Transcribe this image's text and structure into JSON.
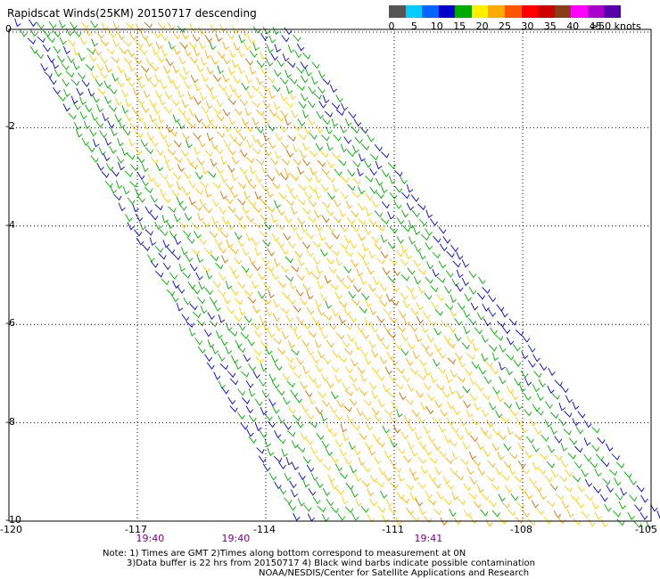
{
  "title": "Rapidscat Winds(25KM) 20150717 descending",
  "legend": {
    "colors": [
      "#555555",
      "#00ccff",
      "#0066ff",
      "#0000cc",
      "#00aa00",
      "#ffee00",
      "#ffaa00",
      "#ff5500",
      "#ff0000",
      "#cc0000",
      "#8b3a1a",
      "#ff00ff",
      "#aa00cc",
      "#5500aa"
    ],
    "labels": [
      "0",
      "5",
      "10",
      "15",
      "20",
      "25",
      "30",
      "35",
      "40",
      "45",
      ">50 knots"
    ],
    "barb_colors": {
      "lt15": "#0000cc",
      "lt20": "#00aa00",
      "lt25": "#ffcc00",
      "lt30": "#ffaa00",
      "ge30": "#cc6600"
    }
  },
  "map": {
    "lon_range": [
      -120,
      -105
    ],
    "lat_range": [
      -10,
      0
    ],
    "x_ticks": [
      "-120",
      "-117",
      "-114",
      "-111",
      "-108",
      "-105"
    ],
    "y_ticks": [
      "0",
      "-2",
      "-4",
      "-6",
      "-8",
      "-10"
    ],
    "grid_lons": [
      -117,
      -114,
      -111,
      -108
    ],
    "grid_lats": [
      -2,
      -4,
      -6,
      -8
    ]
  },
  "swath": {
    "corners": [
      [
        -120,
        0.2
      ],
      [
        -113.5,
        0.2
      ],
      [
        -104.5,
        -10
      ],
      [
        -113.5,
        -10
      ]
    ],
    "speed_knots": {
      "edge": 15,
      "mid": 20,
      "core": 25
    }
  },
  "times": [
    {
      "label": "19:40",
      "lon": -116.7
    },
    {
      "label": "19:40",
      "lon": -114.7
    },
    {
      "label": "19:41",
      "lon": -110.2
    }
  ],
  "notes": [
    "Note: 1) Times are GMT 2)Times along bottom correspond to measurement at 0N",
    "3)Data buffer is 22 hrs from 20150717 4) Black wind barbs indicate possible contamination",
    "NOAA/NESDIS/Center for Satellite Applications and Research"
  ]
}
